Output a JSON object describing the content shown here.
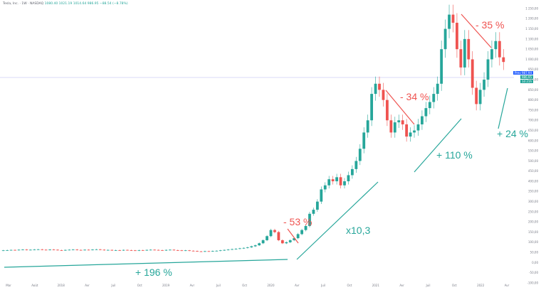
{
  "header": {
    "symbol": "Tesla, Inc. · 1W · NASDAQ",
    "ohlc": "1080.40  1021.19  1014.64  986.95  −88.54 (−8.78%)"
  },
  "price_tags": {
    "last_label": "Prev",
    "last_price": "987.94",
    "current_price": "986.95",
    "countdown": "1d 21h"
  },
  "annotations": {
    "a1": "+ 196 %",
    "a2": "- 53 %",
    "a3": "x10,3",
    "a4": "- 34 %",
    "a5": "+ 110 %",
    "a6": "- 35 %",
    "a7": "+ 24 %"
  },
  "colors": {
    "up": "#26a69a",
    "down": "#ef5350",
    "trend_up": "#26a69a",
    "trend_down": "#ef5350",
    "price_line": "#b2b5f0",
    "axis_text": "#787b86"
  },
  "chart_data": {
    "type": "candlestick",
    "x_ticks": [
      "Mar",
      "Août",
      "2018",
      "Avr",
      "Juil",
      "Oct",
      "2019",
      "Avr",
      "Juil",
      "Oct",
      "2020",
      "Avr",
      "Juil",
      "Oct",
      "2021",
      "Avr",
      "Juil",
      "Oct",
      "2022",
      "Avr"
    ],
    "y_ticks": [
      "1 250,00",
      "1 200,00",
      "1 150,00",
      "1 100,00",
      "1 050,00",
      "1 000,00",
      "950,00",
      "900,00",
      "850,00",
      "800,00",
      "750,00",
      "700,00",
      "650,00",
      "600,00",
      "550,00",
      "500,00",
      "450,00",
      "400,00",
      "350,00",
      "300,00",
      "250,00",
      "200,00",
      "150,00",
      "100,00",
      "50,00",
      "0,00",
      "-50,00",
      "-100,00"
    ],
    "ylim": [
      -100,
      1250
    ],
    "weekly_close": [
      60,
      61,
      62,
      61,
      63,
      64,
      62,
      63,
      64,
      65,
      63,
      62,
      64,
      63,
      61,
      60,
      62,
      63,
      64,
      62,
      61,
      63,
      62,
      64,
      65,
      63,
      61,
      62,
      60,
      61,
      60,
      62,
      61,
      60,
      59,
      61,
      60,
      62,
      63,
      62,
      61,
      60,
      62,
      63,
      61,
      60,
      59,
      60,
      58,
      57,
      55,
      54,
      56,
      55,
      57,
      58,
      60,
      62,
      64,
      66,
      68,
      70,
      72,
      75,
      80,
      85,
      95,
      110,
      130,
      160,
      150,
      110,
      95,
      100,
      110,
      120,
      140,
      160,
      180,
      240,
      260,
      300,
      360,
      380,
      410,
      400,
      420,
      380,
      400,
      430,
      460,
      500,
      560,
      640,
      700,
      830,
      880,
      850,
      800,
      700,
      640,
      690,
      700,
      680,
      620,
      640,
      650,
      680,
      720,
      760,
      790,
      830,
      880,
      1050,
      1150,
      1220,
      1180,
      1050,
      960,
      1100,
      1000,
      860,
      780,
      850,
      900,
      1000,
      1050,
      1090,
      1010,
      987
    ]
  }
}
